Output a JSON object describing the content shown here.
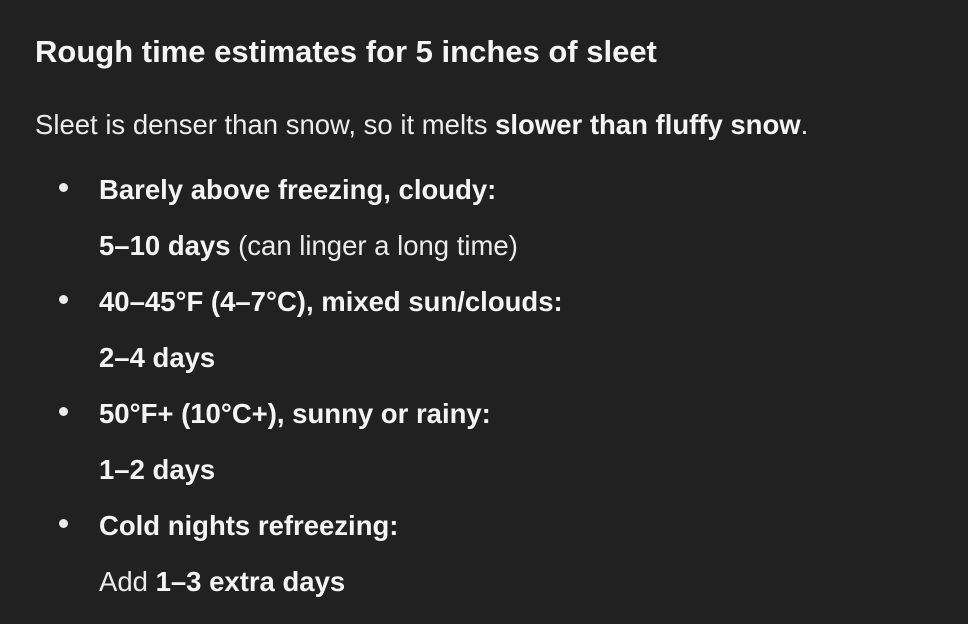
{
  "title": "Rough time estimates for 5 inches of sleet",
  "intro": {
    "text": "Sleet is denser than snow, so it melts ",
    "bold": "slower than fluffy snow",
    "end": "."
  },
  "items": [
    {
      "heading": "Barely above freezing, cloudy:",
      "pre": "",
      "bold": "5–10 days",
      "post": " (can linger a long time)"
    },
    {
      "heading": "40–45°F (4–7°C), mixed sun/clouds:",
      "pre": "",
      "bold": "2–4 days",
      "post": ""
    },
    {
      "heading": "50°F+ (10°C+), sunny or rainy:",
      "pre": "",
      "bold": "1–2 days",
      "post": ""
    },
    {
      "heading": "Cold nights refreezing:",
      "pre": "Add ",
      "bold": "1–3 extra days",
      "post": ""
    }
  ]
}
